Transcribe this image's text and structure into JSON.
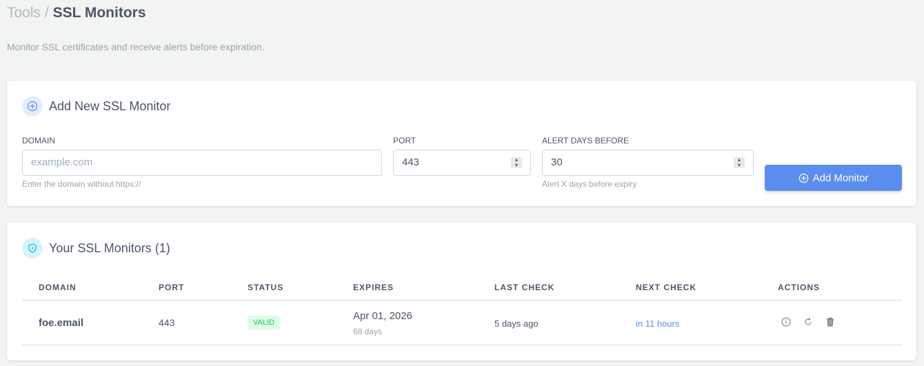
{
  "breadcrumb": {
    "parent": "Tools",
    "separator": "/",
    "current": "SSL Monitors"
  },
  "subtitle": "Monitor SSL certificates and receive alerts before expiration.",
  "add_form": {
    "title": "Add New SSL Monitor",
    "domain": {
      "label": "DOMAIN",
      "placeholder": "example.com",
      "help": "Enter the domain without https://"
    },
    "port": {
      "label": "PORT",
      "value": "443"
    },
    "alert": {
      "label": "ALERT DAYS BEFORE",
      "value": "30",
      "help": "Alert X days before expiry"
    },
    "submit": "Add Monitor"
  },
  "monitors": {
    "title": "Your SSL Monitors (1)",
    "columns": [
      "DOMAIN",
      "PORT",
      "STATUS",
      "EXPIRES",
      "LAST CHECK",
      "NEXT CHECK",
      "ACTIONS"
    ],
    "rows": [
      {
        "domain": "foe.email",
        "port": "443",
        "status": "VALID",
        "expires": "Apr 01, 2026",
        "expires_in": "68 days",
        "last_check": "5 days ago",
        "next_check": "in 11 hours"
      }
    ]
  },
  "colors": {
    "accent": "#5a8dee",
    "valid": "#22c55e",
    "link": "#5a8dee"
  }
}
